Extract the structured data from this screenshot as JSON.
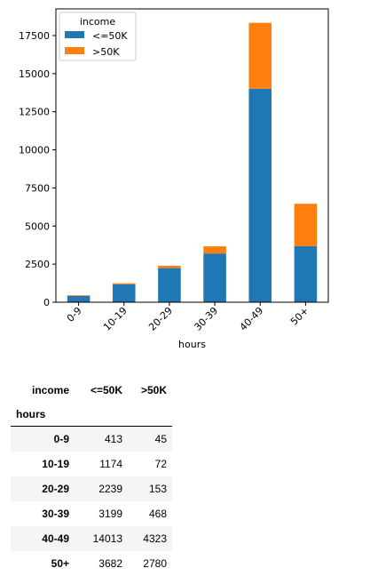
{
  "chart_data": {
    "type": "bar",
    "stacked": true,
    "categories": [
      "0-9",
      "10-19",
      "20-29",
      "30-39",
      "40-49",
      "50+"
    ],
    "series": [
      {
        "name": "<=50K",
        "color": "#1f77b4",
        "values": [
          413,
          1174,
          2239,
          3199,
          14013,
          3682
        ]
      },
      {
        "name": ">50K",
        "color": "#ff7f0e",
        "values": [
          45,
          72,
          153,
          468,
          4323,
          2780
        ]
      }
    ],
    "xlabel": "hours",
    "ylabel": "",
    "ylim": [
      0,
      19250
    ],
    "yticks": [
      0,
      2500,
      5000,
      7500,
      10000,
      12500,
      15000,
      17500
    ],
    "ytick_labels": [
      "0",
      "2500",
      "5000",
      "7500",
      "10000",
      "12500",
      "15000",
      "17500"
    ],
    "legend": {
      "title": "income",
      "placement": "top-left"
    },
    "grid": false
  },
  "table": {
    "column_header_label": "income",
    "columns": [
      "<=50K",
      ">50K"
    ],
    "index_label": "hours",
    "rows": [
      {
        "index": "0-9",
        "values": [
          "413",
          "45"
        ]
      },
      {
        "index": "10-19",
        "values": [
          "1174",
          "72"
        ]
      },
      {
        "index": "20-29",
        "values": [
          "2239",
          "153"
        ]
      },
      {
        "index": "30-39",
        "values": [
          "3199",
          "468"
        ]
      },
      {
        "index": "40-49",
        "values": [
          "14013",
          "4323"
        ]
      },
      {
        "index": "50+",
        "values": [
          "3682",
          "2780"
        ]
      }
    ]
  }
}
